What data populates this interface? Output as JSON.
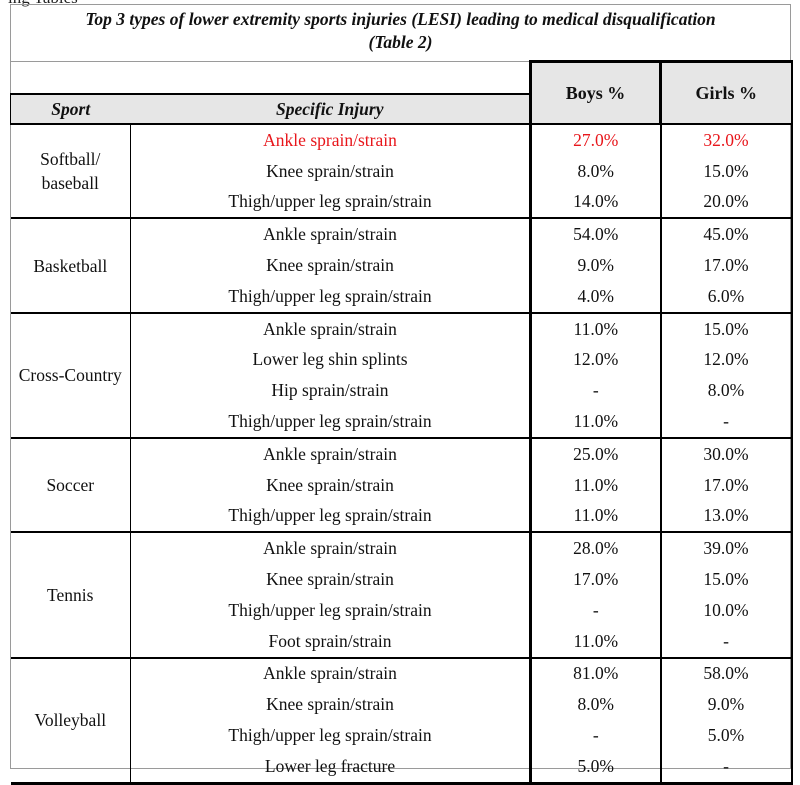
{
  "cropped_text": "ing Tables",
  "title_line1": "Top 3 types of lower extremity sports injuries (LESI) leading to medical disqualification",
  "title_line2": "(Table 2)",
  "columns": {
    "sport": "Sport",
    "injury": "Specific Injury",
    "boys": "Boys %",
    "girls": "Girls %"
  },
  "highlight_color": "#e8161b",
  "groups": [
    {
      "sport": "Softball/ baseball",
      "rows": [
        {
          "injury": "Ankle sprain/strain",
          "boys": "27.0%",
          "girls": "32.0%",
          "highlight": true
        },
        {
          "injury": "Knee sprain/strain",
          "boys": "8.0%",
          "girls": "15.0%"
        },
        {
          "injury": "Thigh/upper leg sprain/strain",
          "boys": "14.0%",
          "girls": "20.0%"
        }
      ]
    },
    {
      "sport": "Basketball",
      "rows": [
        {
          "injury": "Ankle sprain/strain",
          "boys": "54.0%",
          "girls": "45.0%"
        },
        {
          "injury": "Knee sprain/strain",
          "boys": "9.0%",
          "girls": "17.0%"
        },
        {
          "injury": "Thigh/upper leg sprain/strain",
          "boys": "4.0%",
          "girls": "6.0%"
        }
      ]
    },
    {
      "sport": "Cross-Country",
      "rows": [
        {
          "injury": "Ankle sprain/strain",
          "boys": "11.0%",
          "girls": "15.0%"
        },
        {
          "injury": "Lower leg shin splints",
          "boys": "12.0%",
          "girls": "12.0%"
        },
        {
          "injury": "Hip sprain/strain",
          "boys": "-",
          "girls": "8.0%"
        },
        {
          "injury": "Thigh/upper leg sprain/strain",
          "boys": "11.0%",
          "girls": "-"
        }
      ]
    },
    {
      "sport": "Soccer",
      "rows": [
        {
          "injury": "Ankle sprain/strain",
          "boys": "25.0%",
          "girls": "30.0%"
        },
        {
          "injury": "Knee sprain/strain",
          "boys": "11.0%",
          "girls": "17.0%"
        },
        {
          "injury": "Thigh/upper leg sprain/strain",
          "boys": "11.0%",
          "girls": "13.0%"
        }
      ]
    },
    {
      "sport": "Tennis",
      "rows": [
        {
          "injury": "Ankle sprain/strain",
          "boys": "28.0%",
          "girls": "39.0%"
        },
        {
          "injury": "Knee sprain/strain",
          "boys": "17.0%",
          "girls": "15.0%"
        },
        {
          "injury": "Thigh/upper leg sprain/strain",
          "boys": "-",
          "girls": "10.0%"
        },
        {
          "injury": "Foot sprain/strain",
          "boys": "11.0%",
          "girls": "-"
        }
      ]
    },
    {
      "sport": "Volleyball",
      "rows": [
        {
          "injury": "Ankle sprain/strain",
          "boys": "81.0%",
          "girls": "58.0%"
        },
        {
          "injury": "Knee sprain/strain",
          "boys": "8.0%",
          "girls": "9.0%"
        },
        {
          "injury": "Thigh/upper leg sprain/strain",
          "boys": "-",
          "girls": "5.0%"
        },
        {
          "injury": "Lower leg fracture",
          "boys": "5.0%",
          "girls": "-"
        }
      ]
    }
  ]
}
